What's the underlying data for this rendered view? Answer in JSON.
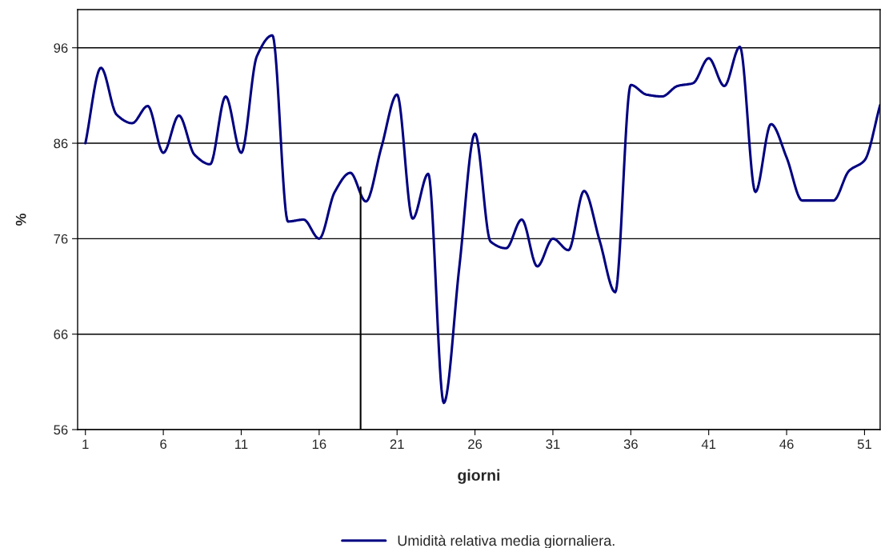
{
  "chart_data": {
    "type": "line",
    "xlabel": "giorni",
    "ylabel": "%",
    "xlim": [
      0.5,
      52
    ],
    "xticks": [
      1,
      6,
      11,
      16,
      21,
      26,
      31,
      36,
      41,
      46,
      51
    ],
    "ylim": [
      56,
      100
    ],
    "yticks": [
      56,
      66,
      76,
      86,
      96
    ],
    "grid": "y",
    "legend": "bottom",
    "marker": "none",
    "line_style": "solid",
    "series": [
      {
        "name": "Umidità relativa media giornaliera.",
        "color": "#000080",
        "x": [
          1,
          2,
          3,
          4,
          5,
          6,
          7,
          8,
          9,
          10,
          11,
          12,
          13,
          14,
          15,
          16,
          17,
          18,
          19,
          20,
          21,
          22,
          23,
          24,
          25,
          26,
          27,
          28,
          29,
          30,
          31,
          32,
          33,
          34,
          35,
          36,
          37,
          38,
          39,
          40,
          41,
          42,
          43,
          44,
          45,
          46,
          47,
          48,
          49,
          50,
          51,
          52
        ],
        "values": [
          86.0,
          93.9,
          89.0,
          88.1,
          89.9,
          85.0,
          88.9,
          84.8,
          83.8,
          90.9,
          85.0,
          95.1,
          97.3,
          77.8,
          78.0,
          76.0,
          80.9,
          82.9,
          79.9,
          85.6,
          91.1,
          78.1,
          82.8,
          58.8,
          73.1,
          87.0,
          75.7,
          75.0,
          78.0,
          73.1,
          76.0,
          74.8,
          81.0,
          75.8,
          70.4,
          92.1,
          91.1,
          90.9,
          92.0,
          92.3,
          94.9,
          92.0,
          96.1,
          80.9,
          88.0,
          84.5,
          80.0,
          80.0,
          80.0,
          83.1,
          84.2,
          90.0
        ]
      },
      {
        "color": "#000000",
        "x": [
          18.66,
          18.66
        ],
        "values": [
          56,
          81.4
        ]
      }
    ]
  }
}
